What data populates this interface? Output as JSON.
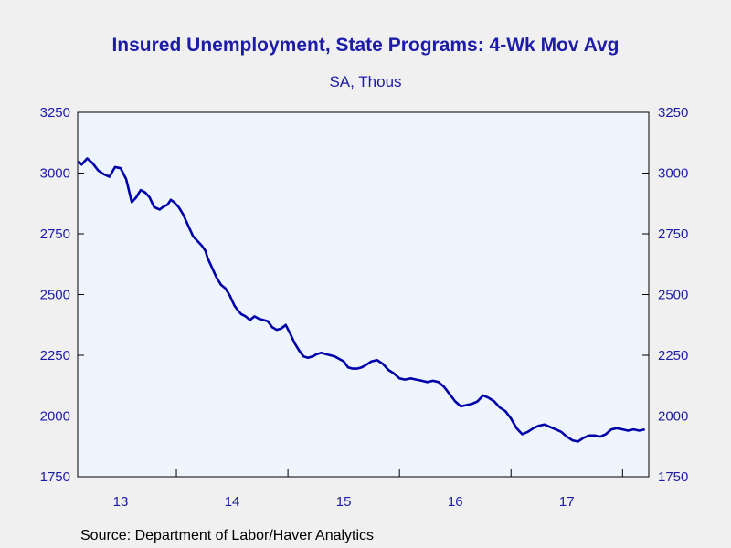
{
  "chart_data": {
    "type": "line",
    "title": "Insured Unemployment, State Programs: 4-Wk Mov Avg",
    "subtitle": "SA, Thous",
    "source": "Source:  Department of Labor/Haver Analytics",
    "xlabel": "",
    "ylabel": "",
    "ylim": [
      1750,
      3250
    ],
    "xlim": [
      2012.615,
      2017.735
    ],
    "y_ticks": [
      1750,
      2000,
      2250,
      2500,
      2750,
      3000,
      3250
    ],
    "y_tick_labels": [
      "1750",
      "2000",
      "2250",
      "2500",
      "2750",
      "3000",
      "3250"
    ],
    "x_tick_labels": [
      {
        "label": "13",
        "year": 2013
      },
      {
        "label": "14",
        "year": 2014
      },
      {
        "label": "15",
        "year": 2015
      },
      {
        "label": "16",
        "year": 2016
      },
      {
        "label": "17",
        "year": 2017
      }
    ],
    "year_boundaries": [
      2013.5,
      2014.5,
      2015.5,
      2016.5,
      2017.5
    ],
    "grid": false,
    "line_color": "#0000a8",
    "plot_background": "#eef5ff",
    "series": [
      {
        "x": [
          2012.62,
          2012.65,
          2012.7,
          2012.75,
          2012.8,
          2012.85,
          2012.9,
          2012.95,
          2013.0,
          2013.05,
          2013.1,
          2013.14,
          2013.18,
          2013.22,
          2013.26,
          2013.3,
          2013.35,
          2013.38,
          2013.42,
          2013.45,
          2013.48,
          2013.52,
          2013.56,
          2013.6,
          2013.65,
          2013.7,
          2013.73,
          2013.76,
          2013.78,
          2013.82,
          2013.86,
          2013.9,
          2013.94,
          2013.98,
          2014.02,
          2014.05,
          2014.08,
          2014.12,
          2014.16,
          2014.2,
          2014.24,
          2014.28,
          2014.32,
          2014.36,
          2014.4,
          2014.44,
          2014.48,
          2014.52,
          2014.56,
          2014.6,
          2014.64,
          2014.68,
          2014.72,
          2014.76,
          2014.8,
          2014.84,
          2014.88,
          2014.92,
          2014.96,
          2015.0,
          2015.04,
          2015.08,
          2015.12,
          2015.16,
          2015.2,
          2015.25,
          2015.3,
          2015.35,
          2015.4,
          2015.45,
          2015.5,
          2015.55,
          2015.6,
          2015.65,
          2015.7,
          2015.75,
          2015.8,
          2015.85,
          2015.9,
          2015.95,
          2016.0,
          2016.05,
          2016.1,
          2016.15,
          2016.2,
          2016.25,
          2016.3,
          2016.35,
          2016.4,
          2016.45,
          2016.5,
          2016.55,
          2016.6,
          2016.65,
          2016.7,
          2016.75,
          2016.8,
          2016.85,
          2016.9,
          2016.95,
          2017.0,
          2017.05,
          2017.1,
          2017.15,
          2017.2,
          2017.25,
          2017.3,
          2017.35,
          2017.4,
          2017.45,
          2017.5,
          2017.55,
          2017.6,
          2017.65,
          2017.7
        ],
        "values": [
          3050,
          3035,
          3060,
          3040,
          3010,
          2995,
          2985,
          3025,
          3020,
          2975,
          2880,
          2900,
          2930,
          2920,
          2900,
          2860,
          2850,
          2860,
          2870,
          2890,
          2880,
          2860,
          2830,
          2790,
          2740,
          2715,
          2700,
          2680,
          2650,
          2610,
          2570,
          2540,
          2525,
          2495,
          2455,
          2435,
          2420,
          2410,
          2395,
          2410,
          2400,
          2395,
          2390,
          2365,
          2355,
          2360,
          2375,
          2340,
          2300,
          2270,
          2245,
          2240,
          2245,
          2255,
          2260,
          2255,
          2250,
          2245,
          2235,
          2225,
          2200,
          2195,
          2195,
          2200,
          2210,
          2225,
          2230,
          2215,
          2190,
          2175,
          2155,
          2150,
          2155,
          2150,
          2145,
          2140,
          2145,
          2140,
          2120,
          2090,
          2060,
          2040,
          2045,
          2050,
          2060,
          2085,
          2075,
          2060,
          2035,
          2020,
          1990,
          1950,
          1925,
          1935,
          1950,
          1960,
          1965,
          1955,
          1945,
          1935,
          1915,
          1900,
          1895,
          1910,
          1920,
          1920,
          1915,
          1925,
          1945,
          1950,
          1945,
          1940,
          1945,
          1940,
          1945
        ]
      }
    ]
  }
}
